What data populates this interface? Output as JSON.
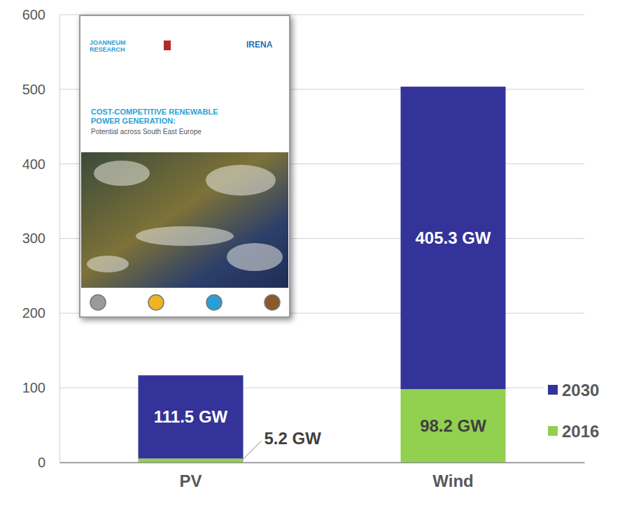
{
  "chart_data": {
    "type": "bar",
    "stacked": true,
    "categories": [
      "PV",
      "Wind"
    ],
    "series": [
      {
        "name": "2016",
        "color": "#92d050",
        "values": [
          5.2,
          98.2
        ],
        "value_labels": [
          "5.2 GW",
          "98.2 GW"
        ]
      },
      {
        "name": "2030",
        "color": "#333399",
        "values": [
          111.5,
          405.3
        ],
        "value_labels": [
          "111.5 GW",
          "405.3 GW"
        ]
      }
    ],
    "ylim": [
      0,
      600
    ],
    "yticks": [
      0,
      100,
      200,
      300,
      400,
      500,
      600
    ],
    "grid": true,
    "legend": "right",
    "data_labels": true,
    "annotations": [
      "JOANNEUM RESEARCH",
      "IRENA",
      "COST-COMPETITIVE RENEWABLE POWER GENERATION:",
      "Potential across South East Europe"
    ]
  }
}
